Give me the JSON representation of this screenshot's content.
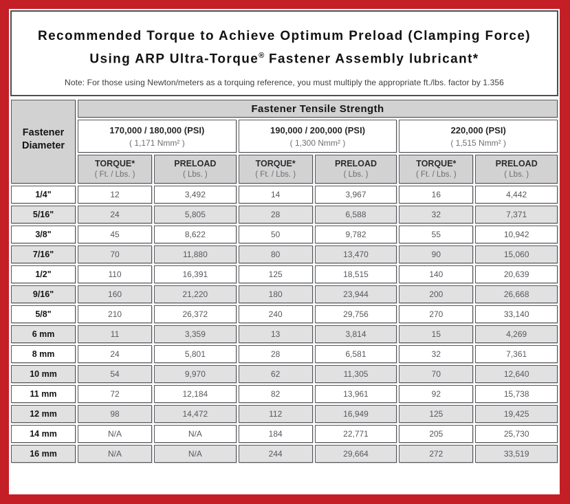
{
  "frame": {
    "border_color": "#c41f27"
  },
  "title": {
    "line1": "Recommended Torque to Achieve Optimum Preload (Clamping Force)",
    "line2_pre": "Using ARP Ultra-Torque",
    "line2_sup": "®",
    "line2_post": " Fastener Assembly lubricant*",
    "note": "Note: For those using Newton/meters as a torquing reference, you must multiply the appropriate ft./lbs. factor by 1.356"
  },
  "table": {
    "corner_line1": "Fastener",
    "corner_line2": "Diameter",
    "tensile_header": "Fastener Tensile Strength",
    "psi_groups": [
      {
        "main": "170,000 / 180,000 (PSI)",
        "sub": "( 1,171 Nmm² )"
      },
      {
        "main": "190,000 / 200,000 (PSI)",
        "sub": "( 1,300 Nmm² )"
      },
      {
        "main": "220,000 (PSI)",
        "sub": "( 1,515 Nmm² )"
      }
    ],
    "col_headers": [
      {
        "label": "TORQUE*",
        "unit": "( Ft. / Lbs. )"
      },
      {
        "label": "PRELOAD",
        "unit": "( Lbs. )"
      },
      {
        "label": "TORQUE*",
        "unit": "( Ft. / Lbs. )"
      },
      {
        "label": "PRELOAD",
        "unit": "( Lbs. )"
      },
      {
        "label": "TORQUE*",
        "unit": "( Ft. / Lbs. )"
      },
      {
        "label": "PRELOAD",
        "unit": "( Lbs. )"
      }
    ],
    "rows": [
      {
        "cells": [
          "1/4\"",
          "12",
          "3,492",
          "14",
          "3,967",
          "16",
          "4,442"
        ]
      },
      {
        "cells": [
          "5/16\"",
          "24",
          "5,805",
          "28",
          "6,588",
          "32",
          "7,371"
        ]
      },
      {
        "cells": [
          "3/8\"",
          "45",
          "8,622",
          "50",
          "9,782",
          "55",
          "10,942"
        ]
      },
      {
        "cells": [
          "7/16\"",
          "70",
          "11,880",
          "80",
          "13,470",
          "90",
          "15,060"
        ]
      },
      {
        "cells": [
          "1/2\"",
          "110",
          "16,391",
          "125",
          "18,515",
          "140",
          "20,639"
        ]
      },
      {
        "cells": [
          "9/16\"",
          "160",
          "21,220",
          "180",
          "23,944",
          "200",
          "26,668"
        ]
      },
      {
        "cells": [
          "5/8\"",
          "210",
          "26,372",
          "240",
          "29,756",
          "270",
          "33,140"
        ]
      },
      {
        "cells": [
          "6 mm",
          "11",
          "3,359",
          "13",
          "3,814",
          "15",
          "4,269"
        ]
      },
      {
        "cells": [
          "8 mm",
          "24",
          "5,801",
          "28",
          "6,581",
          "32",
          "7,361"
        ]
      },
      {
        "cells": [
          "10 mm",
          "54",
          "9,970",
          "62",
          "11,305",
          "70",
          "12,640"
        ]
      },
      {
        "cells": [
          "11 mm",
          "72",
          "12,184",
          "82",
          "13,961",
          "92",
          "15,738"
        ]
      },
      {
        "cells": [
          "12 mm",
          "98",
          "14,472",
          "112",
          "16,949",
          "125",
          "19,425"
        ]
      },
      {
        "cells": [
          "14 mm",
          "N/A",
          "N/A",
          "184",
          "22,771",
          "205",
          "25,730"
        ]
      },
      {
        "cells": [
          "16 mm",
          "N/A",
          "N/A",
          "244",
          "29,664",
          "272",
          "33,519"
        ]
      }
    ]
  }
}
